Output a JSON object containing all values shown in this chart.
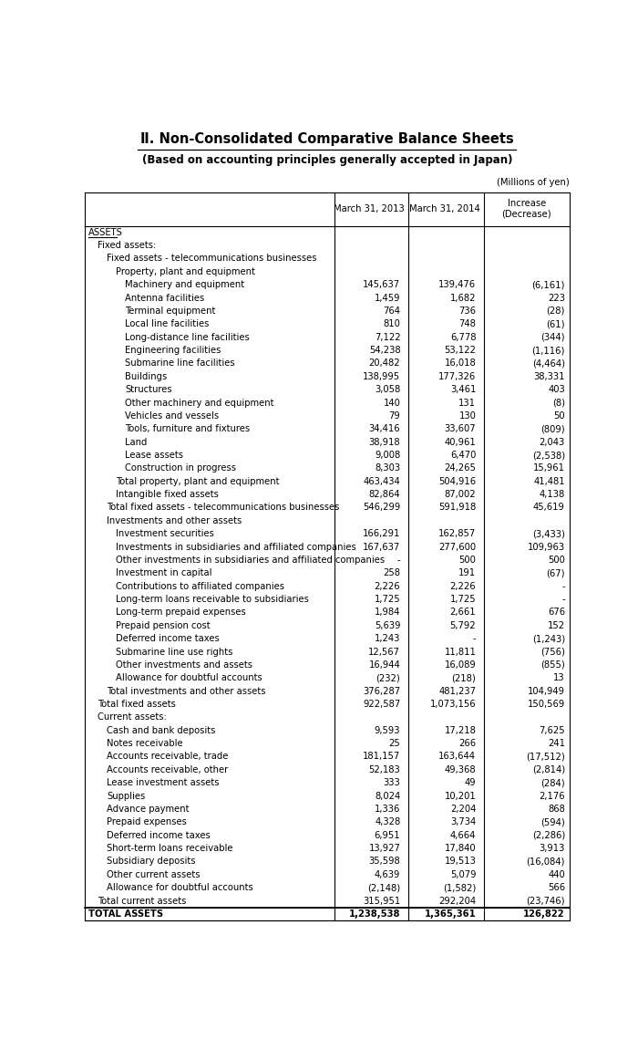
{
  "title": "Ⅱ. Non-Consolidated Comparative Balance Sheets",
  "subtitle": "(Based on accounting principles generally accepted in Japan)",
  "units_label": "(Millions of yen)",
  "rows": [
    {
      "label": "ASSETS",
      "indent": 0,
      "vals": [
        "",
        "",
        ""
      ],
      "style": "section_underline"
    },
    {
      "label": "Fixed assets:",
      "indent": 1,
      "vals": [
        "",
        "",
        ""
      ],
      "style": "normal"
    },
    {
      "label": "Fixed assets - telecommunications businesses",
      "indent": 2,
      "vals": [
        "",
        "",
        ""
      ],
      "style": "normal"
    },
    {
      "label": "Property, plant and equipment",
      "indent": 3,
      "vals": [
        "",
        "",
        ""
      ],
      "style": "normal"
    },
    {
      "label": "Machinery and equipment",
      "indent": 4,
      "vals": [
        "145,637",
        "139,476",
        "(6,161)"
      ],
      "style": "normal"
    },
    {
      "label": "Antenna facilities",
      "indent": 4,
      "vals": [
        "1,459",
        "1,682",
        "223"
      ],
      "style": "normal"
    },
    {
      "label": "Terminal equipment",
      "indent": 4,
      "vals": [
        "764",
        "736",
        "(28)"
      ],
      "style": "normal"
    },
    {
      "label": "Local line facilities",
      "indent": 4,
      "vals": [
        "810",
        "748",
        "(61)"
      ],
      "style": "normal"
    },
    {
      "label": "Long-distance line facilities",
      "indent": 4,
      "vals": [
        "7,122",
        "6,778",
        "(344)"
      ],
      "style": "normal"
    },
    {
      "label": "Engineering facilities",
      "indent": 4,
      "vals": [
        "54,238",
        "53,122",
        "(1,116)"
      ],
      "style": "normal"
    },
    {
      "label": "Submarine line facilities",
      "indent": 4,
      "vals": [
        "20,482",
        "16,018",
        "(4,464)"
      ],
      "style": "normal"
    },
    {
      "label": "Buildings",
      "indent": 4,
      "vals": [
        "138,995",
        "177,326",
        "38,331"
      ],
      "style": "normal"
    },
    {
      "label": "Structures",
      "indent": 4,
      "vals": [
        "3,058",
        "3,461",
        "403"
      ],
      "style": "normal"
    },
    {
      "label": "Other machinery and equipment",
      "indent": 4,
      "vals": [
        "140",
        "131",
        "(8)"
      ],
      "style": "normal"
    },
    {
      "label": "Vehicles and vessels",
      "indent": 4,
      "vals": [
        "79",
        "130",
        "50"
      ],
      "style": "normal"
    },
    {
      "label": "Tools, furniture and fixtures",
      "indent": 4,
      "vals": [
        "34,416",
        "33,607",
        "(809)"
      ],
      "style": "normal"
    },
    {
      "label": "Land",
      "indent": 4,
      "vals": [
        "38,918",
        "40,961",
        "2,043"
      ],
      "style": "normal"
    },
    {
      "label": "Lease assets",
      "indent": 4,
      "vals": [
        "9,008",
        "6,470",
        "(2,538)"
      ],
      "style": "normal"
    },
    {
      "label": "Construction in progress",
      "indent": 4,
      "vals": [
        "8,303",
        "24,265",
        "15,961"
      ],
      "style": "normal"
    },
    {
      "label": "Total property, plant and equipment",
      "indent": 3,
      "vals": [
        "463,434",
        "504,916",
        "41,481"
      ],
      "style": "normal"
    },
    {
      "label": "Intangible fixed assets",
      "indent": 3,
      "vals": [
        "82,864",
        "87,002",
        "4,138"
      ],
      "style": "normal"
    },
    {
      "label": "Total fixed assets - telecommunications businesses",
      "indent": 2,
      "vals": [
        "546,299",
        "591,918",
        "45,619"
      ],
      "style": "normal"
    },
    {
      "label": "Investments and other assets",
      "indent": 2,
      "vals": [
        "",
        "",
        ""
      ],
      "style": "normal"
    },
    {
      "label": "Investment securities",
      "indent": 3,
      "vals": [
        "166,291",
        "162,857",
        "(3,433)"
      ],
      "style": "normal"
    },
    {
      "label": "Investments in subsidiaries and affiliated companies",
      "indent": 3,
      "vals": [
        "167,637",
        "277,600",
        "109,963"
      ],
      "style": "normal"
    },
    {
      "label": "Other investments in subsidiaries and affiliated companies",
      "indent": 3,
      "vals": [
        "-",
        "500",
        "500"
      ],
      "style": "normal"
    },
    {
      "label": "Investment in capital",
      "indent": 3,
      "vals": [
        "258",
        "191",
        "(67)"
      ],
      "style": "normal"
    },
    {
      "label": "Contributions to affiliated companies",
      "indent": 3,
      "vals": [
        "2,226",
        "2,226",
        "-"
      ],
      "style": "normal"
    },
    {
      "label": "Long-term loans receivable to subsidiaries",
      "indent": 3,
      "vals": [
        "1,725",
        "1,725",
        "-"
      ],
      "style": "normal"
    },
    {
      "label": "Long-term prepaid expenses",
      "indent": 3,
      "vals": [
        "1,984",
        "2,661",
        "676"
      ],
      "style": "normal"
    },
    {
      "label": "Prepaid pension cost",
      "indent": 3,
      "vals": [
        "5,639",
        "5,792",
        "152"
      ],
      "style": "normal"
    },
    {
      "label": "Deferred income taxes",
      "indent": 3,
      "vals": [
        "1,243",
        "-",
        "(1,243)"
      ],
      "style": "normal"
    },
    {
      "label": "Submarine line use rights",
      "indent": 3,
      "vals": [
        "12,567",
        "11,811",
        "(756)"
      ],
      "style": "normal"
    },
    {
      "label": "Other investments and assets",
      "indent": 3,
      "vals": [
        "16,944",
        "16,089",
        "(855)"
      ],
      "style": "normal"
    },
    {
      "label": "Allowance for doubtful accounts",
      "indent": 3,
      "vals": [
        "(232)",
        "(218)",
        "13"
      ],
      "style": "normal"
    },
    {
      "label": "Total investments and other assets",
      "indent": 2,
      "vals": [
        "376,287",
        "481,237",
        "104,949"
      ],
      "style": "normal"
    },
    {
      "label": "Total fixed assets",
      "indent": 1,
      "vals": [
        "922,587",
        "1,073,156",
        "150,569"
      ],
      "style": "normal"
    },
    {
      "label": "Current assets:",
      "indent": 1,
      "vals": [
        "",
        "",
        ""
      ],
      "style": "normal"
    },
    {
      "label": "Cash and bank deposits",
      "indent": 2,
      "vals": [
        "9,593",
        "17,218",
        "7,625"
      ],
      "style": "normal"
    },
    {
      "label": "Notes receivable",
      "indent": 2,
      "vals": [
        "25",
        "266",
        "241"
      ],
      "style": "normal"
    },
    {
      "label": "Accounts receivable, trade",
      "indent": 2,
      "vals": [
        "181,157",
        "163,644",
        "(17,512)"
      ],
      "style": "normal"
    },
    {
      "label": "Accounts receivable, other",
      "indent": 2,
      "vals": [
        "52,183",
        "49,368",
        "(2,814)"
      ],
      "style": "normal"
    },
    {
      "label": "Lease investment assets",
      "indent": 2,
      "vals": [
        "333",
        "49",
        "(284)"
      ],
      "style": "normal"
    },
    {
      "label": "Supplies",
      "indent": 2,
      "vals": [
        "8,024",
        "10,201",
        "2,176"
      ],
      "style": "normal"
    },
    {
      "label": "Advance payment",
      "indent": 2,
      "vals": [
        "1,336",
        "2,204",
        "868"
      ],
      "style": "normal"
    },
    {
      "label": "Prepaid expenses",
      "indent": 2,
      "vals": [
        "4,328",
        "3,734",
        "(594)"
      ],
      "style": "normal"
    },
    {
      "label": "Deferred income taxes",
      "indent": 2,
      "vals": [
        "6,951",
        "4,664",
        "(2,286)"
      ],
      "style": "normal"
    },
    {
      "label": "Short-term loans receivable",
      "indent": 2,
      "vals": [
        "13,927",
        "17,840",
        "3,913"
      ],
      "style": "normal"
    },
    {
      "label": "Subsidiary deposits",
      "indent": 2,
      "vals": [
        "35,598",
        "19,513",
        "(16,084)"
      ],
      "style": "normal"
    },
    {
      "label": "Other current assets",
      "indent": 2,
      "vals": [
        "4,639",
        "5,079",
        "440"
      ],
      "style": "normal"
    },
    {
      "label": "Allowance for doubtful accounts",
      "indent": 2,
      "vals": [
        "(2,148)",
        "(1,582)",
        "566"
      ],
      "style": "normal"
    },
    {
      "label": "Total current assets",
      "indent": 1,
      "vals": [
        "315,951",
        "292,204",
        "(23,746)"
      ],
      "style": "total_line"
    },
    {
      "label": "TOTAL ASSETS",
      "indent": 0,
      "vals": [
        "1,238,538",
        "1,365,361",
        "126,822"
      ],
      "style": "total_bold"
    }
  ],
  "bg_color": "#ffffff",
  "text_color": "#000000",
  "line_color": "#000000",
  "font_size": 7.2,
  "header_font_size": 7.2,
  "title_font_size": 10.5,
  "subtitle_font_size": 8.5
}
